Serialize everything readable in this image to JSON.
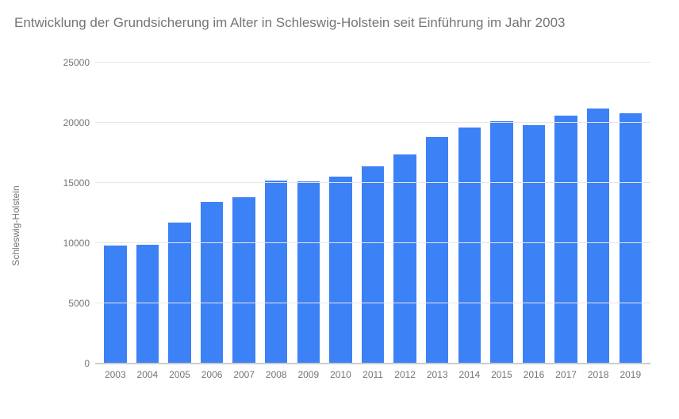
{
  "chart": {
    "type": "bar",
    "title": "Entwicklung der Grundsicherung im Alter in Schleswig-Holstein seit Einführung im Jahr 2003",
    "title_color": "#757575",
    "title_fontsize": 17,
    "ylabel": "Schleswig-Holstein",
    "label_fontsize": 12,
    "label_color": "#757575",
    "ylim": [
      0,
      25000
    ],
    "ytick_step": 5000,
    "yticks": [
      0,
      5000,
      10000,
      15000,
      20000,
      25000
    ],
    "categories": [
      "2003",
      "2004",
      "2005",
      "2006",
      "2007",
      "2008",
      "2009",
      "2010",
      "2011",
      "2012",
      "2013",
      "2014",
      "2015",
      "2016",
      "2017",
      "2018",
      "2019"
    ],
    "values": [
      9800,
      9900,
      11700,
      13400,
      13800,
      15200,
      15100,
      15500,
      16400,
      17400,
      18800,
      19600,
      20100,
      19800,
      20600,
      21200,
      20800
    ],
    "bar_color": "#3c81f6",
    "bar_width": 0.7,
    "background_color": "#ffffff",
    "grid_color": "#e6e6e6",
    "axis_color": "#cccccc",
    "tick_fontsize": 12,
    "tick_color": "#757575"
  }
}
